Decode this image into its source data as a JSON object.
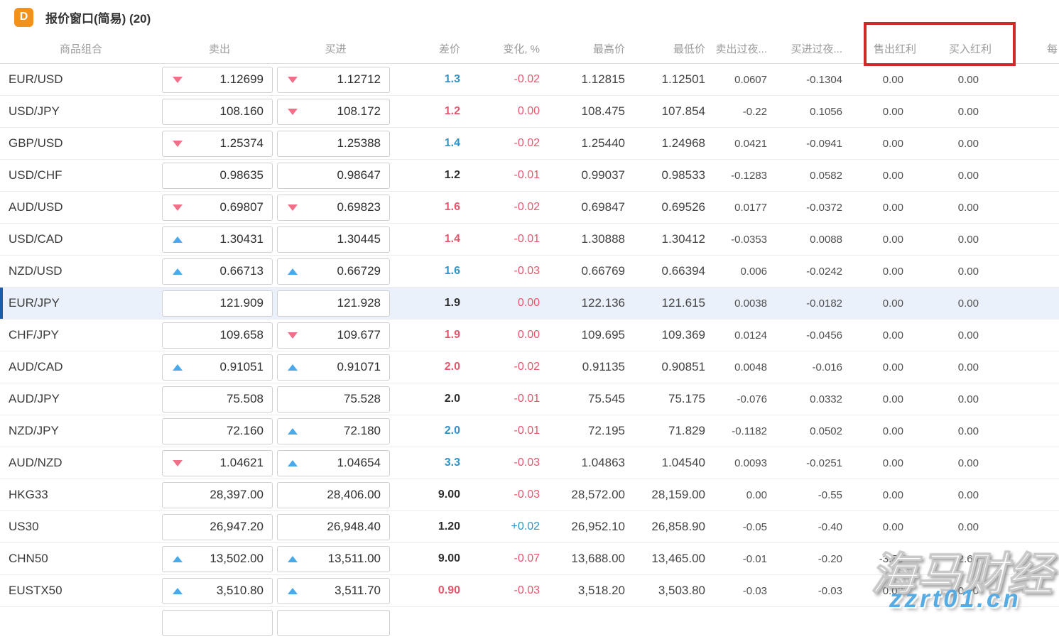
{
  "window": {
    "badge": "D",
    "title": "报价窗口(简易) (20)"
  },
  "columns": [
    {
      "key": "symbol",
      "label": "商品组合",
      "align": "center"
    },
    {
      "key": "sell",
      "label": "卖出",
      "align": "center"
    },
    {
      "key": "buy",
      "label": "买进",
      "align": "center"
    },
    {
      "key": "spread",
      "label": "差价",
      "align": "right"
    },
    {
      "key": "change",
      "label": "变化, %",
      "align": "right"
    },
    {
      "key": "high",
      "label": "最高价",
      "align": "right"
    },
    {
      "key": "low",
      "label": "最低价",
      "align": "right"
    },
    {
      "key": "swap-sell",
      "label": "卖出过夜...",
      "align": "right"
    },
    {
      "key": "swap-buy",
      "label": "买进过夜...",
      "align": "right"
    },
    {
      "key": "div-sell",
      "label": "售出红利",
      "align": "right"
    },
    {
      "key": "div-buy",
      "label": "买入红利",
      "align": "right"
    },
    {
      "key": "extra",
      "label": "每",
      "align": "left"
    }
  ],
  "rows": [
    {
      "symbol": "EUR/USD",
      "sell": "1.12699",
      "sell_arrow": "down",
      "buy": "1.12712",
      "buy_arrow": "down",
      "spread": "1.3",
      "spread_color": "blue",
      "change": "-0.02",
      "change_color": "red",
      "high": "1.12815",
      "low": "1.12501",
      "swap_sell": "0.0607",
      "swap_buy": "-0.1304",
      "div_sell": "0.00",
      "div_buy": "0.00",
      "highlighted": false
    },
    {
      "symbol": "USD/JPY",
      "sell": "108.160",
      "sell_arrow": null,
      "buy": "108.172",
      "buy_arrow": "down",
      "spread": "1.2",
      "spread_color": "red",
      "change": "0.00",
      "change_color": "red",
      "high": "108.475",
      "low": "107.854",
      "swap_sell": "-0.22",
      "swap_buy": "0.1056",
      "div_sell": "0.00",
      "div_buy": "0.00",
      "highlighted": false
    },
    {
      "symbol": "GBP/USD",
      "sell": "1.25374",
      "sell_arrow": "down",
      "buy": "1.25388",
      "buy_arrow": null,
      "spread": "1.4",
      "spread_color": "blue",
      "change": "-0.02",
      "change_color": "red",
      "high": "1.25440",
      "low": "1.24968",
      "swap_sell": "0.0421",
      "swap_buy": "-0.0941",
      "div_sell": "0.00",
      "div_buy": "0.00",
      "highlighted": false
    },
    {
      "symbol": "USD/CHF",
      "sell": "0.98635",
      "sell_arrow": null,
      "buy": "0.98647",
      "buy_arrow": null,
      "spread": "1.2",
      "spread_color": "dark",
      "change": "-0.01",
      "change_color": "red",
      "high": "0.99037",
      "low": "0.98533",
      "swap_sell": "-0.1283",
      "swap_buy": "0.0582",
      "div_sell": "0.00",
      "div_buy": "0.00",
      "highlighted": false
    },
    {
      "symbol": "AUD/USD",
      "sell": "0.69807",
      "sell_arrow": "down",
      "buy": "0.69823",
      "buy_arrow": "down",
      "spread": "1.6",
      "spread_color": "red",
      "change": "-0.02",
      "change_color": "red",
      "high": "0.69847",
      "low": "0.69526",
      "swap_sell": "0.0177",
      "swap_buy": "-0.0372",
      "div_sell": "0.00",
      "div_buy": "0.00",
      "highlighted": false
    },
    {
      "symbol": "USD/CAD",
      "sell": "1.30431",
      "sell_arrow": "up",
      "buy": "1.30445",
      "buy_arrow": null,
      "spread": "1.4",
      "spread_color": "red",
      "change": "-0.01",
      "change_color": "red",
      "high": "1.30888",
      "low": "1.30412",
      "swap_sell": "-0.0353",
      "swap_buy": "0.0088",
      "div_sell": "0.00",
      "div_buy": "0.00",
      "highlighted": false
    },
    {
      "symbol": "NZD/USD",
      "sell": "0.66713",
      "sell_arrow": "up",
      "buy": "0.66729",
      "buy_arrow": "up",
      "spread": "1.6",
      "spread_color": "blue",
      "change": "-0.03",
      "change_color": "red",
      "high": "0.66769",
      "low": "0.66394",
      "swap_sell": "0.006",
      "swap_buy": "-0.0242",
      "div_sell": "0.00",
      "div_buy": "0.00",
      "highlighted": false
    },
    {
      "symbol": "EUR/JPY",
      "sell": "121.909",
      "sell_arrow": null,
      "buy": "121.928",
      "buy_arrow": null,
      "spread": "1.9",
      "spread_color": "dark",
      "change": "0.00",
      "change_color": "red",
      "high": "122.136",
      "low": "121.615",
      "swap_sell": "0.0038",
      "swap_buy": "-0.0182",
      "div_sell": "0.00",
      "div_buy": "0.00",
      "highlighted": true
    },
    {
      "symbol": "CHF/JPY",
      "sell": "109.658",
      "sell_arrow": null,
      "buy": "109.677",
      "buy_arrow": "down",
      "spread": "1.9",
      "spread_color": "red",
      "change": "0.00",
      "change_color": "red",
      "high": "109.695",
      "low": "109.369",
      "swap_sell": "0.0124",
      "swap_buy": "-0.0456",
      "div_sell": "0.00",
      "div_buy": "0.00",
      "highlighted": false
    },
    {
      "symbol": "AUD/CAD",
      "sell": "0.91051",
      "sell_arrow": "up",
      "buy": "0.91071",
      "buy_arrow": "up",
      "spread": "2.0",
      "spread_color": "red",
      "change": "-0.02",
      "change_color": "red",
      "high": "0.91135",
      "low": "0.90851",
      "swap_sell": "0.0048",
      "swap_buy": "-0.016",
      "div_sell": "0.00",
      "div_buy": "0.00",
      "highlighted": false
    },
    {
      "symbol": "AUD/JPY",
      "sell": "75.508",
      "sell_arrow": null,
      "buy": "75.528",
      "buy_arrow": null,
      "spread": "2.0",
      "spread_color": "dark",
      "change": "-0.01",
      "change_color": "red",
      "high": "75.545",
      "low": "75.175",
      "swap_sell": "-0.076",
      "swap_buy": "0.0332",
      "div_sell": "0.00",
      "div_buy": "0.00",
      "highlighted": false
    },
    {
      "symbol": "NZD/JPY",
      "sell": "72.160",
      "sell_arrow": null,
      "buy": "72.180",
      "buy_arrow": "up",
      "spread": "2.0",
      "spread_color": "blue",
      "change": "-0.01",
      "change_color": "red",
      "high": "72.195",
      "low": "71.829",
      "swap_sell": "-0.1182",
      "swap_buy": "0.0502",
      "div_sell": "0.00",
      "div_buy": "0.00",
      "highlighted": false
    },
    {
      "symbol": "AUD/NZD",
      "sell": "1.04621",
      "sell_arrow": "down",
      "buy": "1.04654",
      "buy_arrow": "up",
      "spread": "3.3",
      "spread_color": "blue",
      "change": "-0.03",
      "change_color": "red",
      "high": "1.04863",
      "low": "1.04540",
      "swap_sell": "0.0093",
      "swap_buy": "-0.0251",
      "div_sell": "0.00",
      "div_buy": "0.00",
      "highlighted": false
    },
    {
      "symbol": "HKG33",
      "sell": "28,397.00",
      "sell_arrow": null,
      "buy": "28,406.00",
      "buy_arrow": null,
      "spread": "9.00",
      "spread_color": "dark",
      "change": "-0.03",
      "change_color": "red",
      "high": "28,572.00",
      "low": "28,159.00",
      "swap_sell": "0.00",
      "swap_buy": "-0.55",
      "div_sell": "0.00",
      "div_buy": "0.00",
      "highlighted": false
    },
    {
      "symbol": "US30",
      "sell": "26,947.20",
      "sell_arrow": null,
      "buy": "26,948.40",
      "buy_arrow": null,
      "spread": "1.20",
      "spread_color": "dark",
      "change": "+0.02",
      "change_color": "blue",
      "high": "26,952.10",
      "low": "26,858.90",
      "swap_sell": "-0.05",
      "swap_buy": "-0.40",
      "div_sell": "0.00",
      "div_buy": "0.00",
      "highlighted": false
    },
    {
      "symbol": "CHN50",
      "sell": "13,502.00",
      "sell_arrow": "up",
      "buy": "13,511.00",
      "buy_arrow": "up",
      "spread": "9.00",
      "spread_color": "dark",
      "change": "-0.07",
      "change_color": "red",
      "high": "13,688.00",
      "low": "13,465.00",
      "swap_sell": "-0.01",
      "swap_buy": "-0.20",
      "div_sell": "-3.53",
      "div_buy": "2.64",
      "highlighted": false
    },
    {
      "symbol": "EUSTX50",
      "sell": "3,510.80",
      "sell_arrow": "up",
      "buy": "3,511.70",
      "buy_arrow": "up",
      "spread": "0.90",
      "spread_color": "red",
      "change": "-0.03",
      "change_color": "red",
      "high": "3,518.20",
      "low": "3,503.80",
      "swap_sell": "-0.03",
      "swap_buy": "-0.03",
      "div_sell": "0.00",
      "div_buy": "0.00",
      "highlighted": false
    }
  ],
  "annotation": {
    "shape": "red-box",
    "over_columns": [
      "售出红利",
      "买入红利"
    ]
  },
  "watermark": {
    "line1": "海马财经",
    "line2": "zzrt01.cn"
  },
  "colors": {
    "accent_orange": "#f39119",
    "arrow_up": "#49a9e9",
    "arrow_down": "#f0708a",
    "val_blue": "#3193c6",
    "val_red": "#e8566d",
    "highlight_bg": "#eaf1fb",
    "highlight_stripe": "#1a5dab",
    "annotation_red": "#cd2a28",
    "watermark_blue": "#55ace4"
  }
}
